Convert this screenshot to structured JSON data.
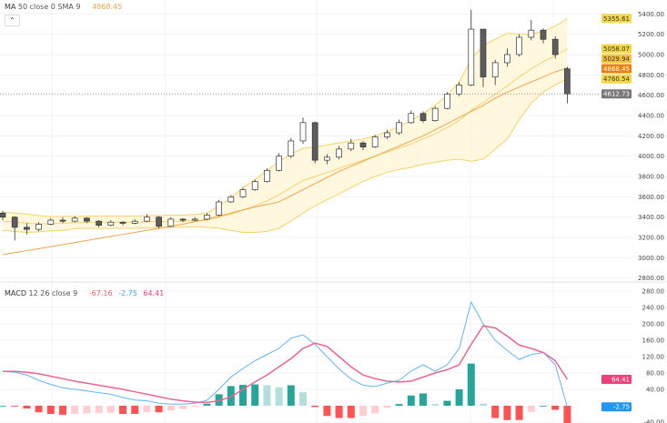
{
  "price_legend": {
    "name": "MA",
    "params": "50 close 0 SMA 9",
    "value": "4868.45"
  },
  "macd_legend": {
    "name": "MACD",
    "params": "12 26 close 9",
    "histogram": "-67.16",
    "macd": "-2.75",
    "signal": "64.41"
  },
  "collapse_icon": "chevron-up-icon",
  "colors": {
    "up_body": "#ffffff",
    "down_body": "#5d5d5d",
    "wick": "#333333",
    "band_line": "#f5d36b",
    "band_fill": "#fff5d6",
    "sma50": "#f2a44b",
    "macd": "#64b5f6",
    "signal": "#f0628f",
    "hist_pos_up": "#26a69a",
    "hist_pos_down": "#b2dfdb",
    "hist_neg_down": "#ff5252",
    "hist_neg_up": "#ffcdd2",
    "last_price": "#787878"
  },
  "chart_data": [
    {
      "type": "candlestick",
      "title": "",
      "ylim": [
        2750,
        5450
      ],
      "yticks": [
        5400,
        5200,
        5000,
        4800,
        4600,
        4400,
        4200,
        4000,
        3800,
        3600,
        3400,
        3200,
        3000,
        2800
      ],
      "grid": true,
      "ohlc": [
        [
          3440,
          3460,
          3370,
          3400
        ],
        [
          3400,
          3410,
          3170,
          3300
        ],
        [
          3300,
          3340,
          3230,
          3280
        ],
        [
          3280,
          3350,
          3260,
          3330
        ],
        [
          3330,
          3390,
          3320,
          3370
        ],
        [
          3370,
          3400,
          3340,
          3360
        ],
        [
          3360,
          3410,
          3350,
          3390
        ],
        [
          3390,
          3400,
          3340,
          3360
        ],
        [
          3360,
          3370,
          3300,
          3320
        ],
        [
          3320,
          3370,
          3310,
          3350
        ],
        [
          3350,
          3360,
          3320,
          3340
        ],
        [
          3340,
          3380,
          3330,
          3360
        ],
        [
          3360,
          3430,
          3350,
          3400
        ],
        [
          3400,
          3410,
          3290,
          3310
        ],
        [
          3310,
          3400,
          3300,
          3380
        ],
        [
          3380,
          3390,
          3350,
          3370
        ],
        [
          3370,
          3400,
          3360,
          3380
        ],
        [
          3380,
          3440,
          3370,
          3420
        ],
        [
          3420,
          3570,
          3410,
          3550
        ],
        [
          3550,
          3620,
          3540,
          3600
        ],
        [
          3600,
          3690,
          3590,
          3670
        ],
        [
          3670,
          3770,
          3660,
          3750
        ],
        [
          3750,
          3880,
          3740,
          3860
        ],
        [
          3860,
          4030,
          3850,
          4000
        ],
        [
          4000,
          4180,
          3980,
          4150
        ],
        [
          4150,
          4380,
          4120,
          4330
        ],
        [
          4330,
          4340,
          3930,
          3960
        ],
        [
          3960,
          4020,
          3920,
          3990
        ],
        [
          3990,
          4100,
          3970,
          4070
        ],
        [
          4070,
          4170,
          4050,
          4130
        ],
        [
          4130,
          4150,
          4060,
          4090
        ],
        [
          4090,
          4210,
          4080,
          4190
        ],
        [
          4190,
          4260,
          4170,
          4230
        ],
        [
          4230,
          4360,
          4210,
          4330
        ],
        [
          4330,
          4450,
          4320,
          4420
        ],
        [
          4420,
          4440,
          4330,
          4350
        ],
        [
          4350,
          4490,
          4340,
          4470
        ],
        [
          4470,
          4630,
          4460,
          4610
        ],
        [
          4610,
          4730,
          4590,
          4700
        ],
        [
          4700,
          5440,
          4690,
          5250
        ],
        [
          5250,
          5250,
          4680,
          4780
        ],
        [
          4780,
          4950,
          4700,
          4920
        ],
        [
          4920,
          5060,
          4880,
          5000
        ],
        [
          5000,
          5200,
          4980,
          5170
        ],
        [
          5170,
          5340,
          5140,
          5240
        ],
        [
          5240,
          5260,
          5110,
          5150
        ],
        [
          5150,
          5180,
          4960,
          5000
        ],
        [
          4860,
          4880,
          4520,
          4612.73
        ]
      ],
      "series": [
        {
          "name": "MA 50",
          "values": [
            3030,
            3050,
            3070,
            3090,
            3110,
            3130,
            3150,
            3170,
            3190,
            3210,
            3230,
            3250,
            3270,
            3290,
            3310,
            3330,
            3355,
            3380,
            3410,
            3440,
            3470,
            3500,
            3525,
            3550,
            3610,
            3670,
            3730,
            3790,
            3850,
            3900,
            3950,
            4000,
            4050,
            4100,
            4150,
            4200,
            4260,
            4320,
            4380,
            4440,
            4500,
            4570,
            4630,
            4680,
            4730,
            4780,
            4830,
            4868.45
          ]
        },
        {
          "name": "BB basis",
          "values": [
            3360,
            3350,
            3340,
            3335,
            3335,
            3340,
            3345,
            3350,
            3350,
            3350,
            3350,
            3350,
            3355,
            3355,
            3360,
            3360,
            3365,
            3370,
            3400,
            3430,
            3470,
            3510,
            3560,
            3620,
            3690,
            3760,
            3800,
            3840,
            3880,
            3920,
            3960,
            4000,
            4040,
            4080,
            4120,
            4170,
            4220,
            4280,
            4350,
            4450,
            4530,
            4610,
            4690,
            4780,
            4860,
            4930,
            4990,
            5058.07
          ]
        },
        {
          "name": "BB upper",
          "values": [
            3450,
            3440,
            3430,
            3415,
            3405,
            3410,
            3405,
            3410,
            3410,
            3410,
            3410,
            3410,
            3415,
            3415,
            3420,
            3420,
            3425,
            3440,
            3510,
            3590,
            3690,
            3770,
            3860,
            3950,
            4020,
            4080,
            4090,
            4110,
            4130,
            4150,
            4170,
            4200,
            4240,
            4290,
            4350,
            4420,
            4500,
            4600,
            4730,
            4950,
            5090,
            5150,
            5210,
            5200,
            5200,
            5230,
            5280,
            5355.61
          ]
        },
        {
          "name": "BB lower",
          "values": [
            3270,
            3260,
            3250,
            3255,
            3265,
            3270,
            3285,
            3290,
            3290,
            3290,
            3290,
            3290,
            3295,
            3295,
            3300,
            3300,
            3305,
            3300,
            3290,
            3270,
            3250,
            3250,
            3260,
            3290,
            3360,
            3440,
            3510,
            3570,
            3630,
            3690,
            3750,
            3800,
            3840,
            3870,
            3890,
            3920,
            3940,
            3960,
            3970,
            3950,
            3970,
            4070,
            4170,
            4360,
            4520,
            4630,
            4700,
            4760.54
          ]
        }
      ],
      "value_labels": [
        {
          "text": "5355.61",
          "value": 5355.61,
          "color": "#f5d84a"
        },
        {
          "text": "5058.07",
          "value": 5058.07,
          "color": "#f5d84a"
        },
        {
          "text": "5029.94",
          "value": 5029.94,
          "color": "#f7c23a"
        },
        {
          "text": "4868.45",
          "value": 4868.45,
          "color": "#e8820c"
        },
        {
          "text": "4760.54",
          "value": 4760.54,
          "color": "#f5d84a"
        },
        {
          "text": "4612.73",
          "value": 4612.73,
          "color": "#787878"
        }
      ]
    },
    {
      "type": "macd",
      "ylim": [
        -45,
        290
      ],
      "yticks": [
        280,
        240,
        200,
        160,
        120,
        80,
        40,
        -40
      ],
      "series": [
        {
          "name": "MACD",
          "values": [
            84,
            82,
            75,
            62,
            52,
            44,
            40,
            36,
            32,
            28,
            20,
            14,
            12,
            6,
            4,
            4,
            6,
            13,
            40,
            70,
            91,
            110,
            125,
            140,
            165,
            173,
            150,
            120,
            90,
            65,
            50,
            47,
            55,
            62,
            85,
            100,
            84,
            100,
            140,
            253,
            200,
            160,
            135,
            113,
            125,
            130,
            100,
            -2.75
          ]
        },
        {
          "name": "Signal",
          "values": [
            84,
            84,
            82,
            78,
            72,
            66,
            60,
            55,
            50,
            45,
            40,
            34,
            28,
            22,
            16,
            12,
            9,
            8,
            12,
            22,
            40,
            58,
            75,
            95,
            115,
            140,
            153,
            145,
            120,
            95,
            75,
            66,
            60,
            58,
            60,
            70,
            80,
            88,
            100,
            150,
            195,
            190,
            170,
            148,
            140,
            130,
            110,
            64.41
          ]
        },
        {
          "name": "Histogram",
          "values": [
            0,
            -2,
            -7,
            -16,
            -20,
            -22,
            -20,
            -19,
            -18,
            -17,
            -20,
            -20,
            -16,
            -16,
            -12,
            -8,
            -3,
            5,
            28,
            48,
            51,
            52,
            50,
            45,
            50,
            33,
            -3,
            -25,
            -30,
            -30,
            -25,
            -19,
            -5,
            4,
            25,
            30,
            4,
            12,
            40,
            103,
            5,
            -30,
            -35,
            -35,
            -15,
            0,
            -10,
            -67.16
          ]
        }
      ],
      "value_labels": [
        {
          "text": "64.41",
          "value": 64.41,
          "color": "#f0407a"
        },
        {
          "text": "-2.75",
          "value": -2.75,
          "color": "#2196f3"
        }
      ]
    }
  ]
}
